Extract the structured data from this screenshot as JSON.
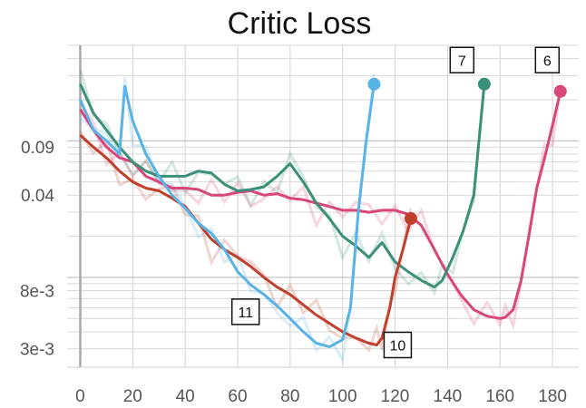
{
  "chart_data": {
    "type": "line",
    "title": "Critic Loss",
    "xlabel": "",
    "ylabel": "",
    "yscale": "log",
    "xlim": [
      -5,
      190
    ],
    "ylim": [
      0.0022,
      0.5
    ],
    "grid": true,
    "x_ticks": [
      0,
      20,
      40,
      60,
      80,
      100,
      120,
      140,
      160,
      180
    ],
    "x_tick_labels": [
      "0",
      "20",
      "40",
      "60",
      "80",
      "100",
      "120",
      "140",
      "160",
      "180"
    ],
    "y_ticks": [
      0.09,
      0.04,
      0.008,
      0.003
    ],
    "y_tick_labels": [
      "0.09",
      "0.04",
      "8e-3",
      "3e-3"
    ],
    "series": [
      {
        "name": "6",
        "color": "#d9467a",
        "x": [
          0,
          5,
          10,
          15,
          20,
          25,
          30,
          35,
          40,
          45,
          50,
          55,
          60,
          65,
          70,
          75,
          80,
          85,
          90,
          95,
          100,
          105,
          110,
          115,
          120,
          125,
          130,
          135,
          140,
          145,
          150,
          155,
          160,
          162,
          165,
          168,
          171,
          174,
          177,
          180,
          183
        ],
        "y": [
          0.17,
          0.12,
          0.09,
          0.075,
          0.07,
          0.055,
          0.05,
          0.045,
          0.045,
          0.044,
          0.04,
          0.04,
          0.042,
          0.043,
          0.04,
          0.041,
          0.038,
          0.037,
          0.035,
          0.033,
          0.031,
          0.031,
          0.03,
          0.031,
          0.031,
          0.029,
          0.024,
          0.016,
          0.0105,
          0.0075,
          0.0058,
          0.0052,
          0.005,
          0.0051,
          0.0058,
          0.0095,
          0.02,
          0.045,
          0.075,
          0.13,
          0.23
        ]
      },
      {
        "name": "7",
        "color": "#3a9079",
        "x": [
          0,
          5,
          10,
          15,
          20,
          25,
          30,
          35,
          40,
          45,
          50,
          55,
          60,
          65,
          70,
          75,
          80,
          85,
          90,
          95,
          100,
          105,
          110,
          115,
          120,
          125,
          130,
          135,
          138,
          142,
          146,
          150,
          154
        ],
        "y": [
          0.26,
          0.16,
          0.12,
          0.09,
          0.07,
          0.06,
          0.055,
          0.055,
          0.055,
          0.06,
          0.058,
          0.048,
          0.043,
          0.044,
          0.046,
          0.055,
          0.068,
          0.05,
          0.035,
          0.027,
          0.02,
          0.017,
          0.014,
          0.018,
          0.013,
          0.011,
          0.0095,
          0.0085,
          0.0095,
          0.014,
          0.022,
          0.04,
          0.26
        ]
      },
      {
        "name": "10",
        "color": "#c0402b",
        "x": [
          0,
          5,
          10,
          15,
          20,
          25,
          30,
          35,
          40,
          45,
          50,
          55,
          60,
          65,
          70,
          75,
          80,
          85,
          90,
          95,
          100,
          105,
          110,
          113,
          115,
          118,
          120,
          123,
          126
        ],
        "y": [
          0.11,
          0.09,
          0.075,
          0.06,
          0.05,
          0.045,
          0.043,
          0.038,
          0.033,
          0.025,
          0.019,
          0.016,
          0.014,
          0.012,
          0.01,
          0.0085,
          0.0075,
          0.0063,
          0.0053,
          0.0046,
          0.004,
          0.0036,
          0.0033,
          0.0032,
          0.0036,
          0.006,
          0.01,
          0.016,
          0.027
        ]
      },
      {
        "name": "11",
        "color": "#58b3e6",
        "x": [
          0,
          5,
          10,
          15,
          17,
          20,
          25,
          30,
          35,
          40,
          45,
          50,
          55,
          60,
          65,
          70,
          75,
          80,
          85,
          90,
          95,
          100,
          103,
          106,
          109,
          112
        ],
        "y": [
          0.2,
          0.12,
          0.1,
          0.08,
          0.25,
          0.14,
          0.08,
          0.055,
          0.04,
          0.032,
          0.025,
          0.021,
          0.016,
          0.011,
          0.0088,
          0.0075,
          0.0062,
          0.005,
          0.004,
          0.0033,
          0.0031,
          0.0035,
          0.006,
          0.03,
          0.1,
          0.26
        ]
      }
    ],
    "tags": [
      {
        "label": "7",
        "x": 145.5,
        "y": 0.39
      },
      {
        "label": "6",
        "x": 178,
        "y": 0.39
      },
      {
        "label": "11",
        "x": 63,
        "y": 0.0056
      },
      {
        "label": "10",
        "x": 121,
        "y": 0.0032
      }
    ]
  }
}
